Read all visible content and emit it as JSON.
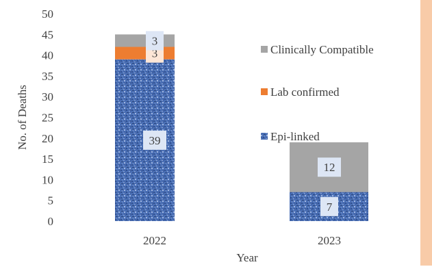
{
  "chart_data": {
    "type": "bar",
    "stacked": true,
    "categories": [
      "2022",
      "2023"
    ],
    "series": [
      {
        "name": "Epi-linked",
        "values": [
          39,
          7
        ],
        "color": "#4a6fb5",
        "pattern": "textured-blue"
      },
      {
        "name": "Lab confirmed",
        "values": [
          3,
          0
        ],
        "color": "#ed7d31"
      },
      {
        "name": "Clinically Compatible",
        "values": [
          3,
          12
        ],
        "color": "#a5a5a5"
      }
    ],
    "data_labels": [
      {
        "category": "2022",
        "series": "Epi-linked",
        "text": "39"
      },
      {
        "category": "2022",
        "series": "Lab confirmed",
        "text": "3"
      },
      {
        "category": "2022",
        "series": "Clinically Compatible",
        "text": "3"
      },
      {
        "category": "2023",
        "series": "Epi-linked",
        "text": "7"
      },
      {
        "category": "2023",
        "series": "Clinically Compatible",
        "text": "12"
      }
    ],
    "title": "",
    "xlabel": "Year",
    "ylabel": "No. of  Deaths",
    "ylim": [
      0,
      50
    ],
    "yticks": [
      0,
      5,
      10,
      15,
      20,
      25,
      30,
      35,
      40,
      45,
      50
    ],
    "grid": false,
    "legend_position": "right",
    "legend_order": [
      "Clinically Compatible",
      "Lab confirmed",
      "Epi-linked"
    ]
  }
}
